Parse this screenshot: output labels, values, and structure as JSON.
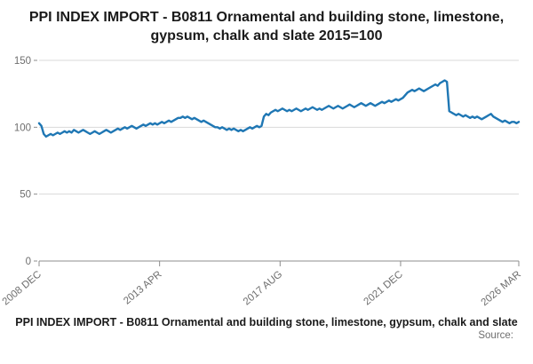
{
  "title": "PPI INDEX IMPORT - B0811 Ornamental and building stone, limestone, gypsum, chalk and slate 2015=100",
  "footer": {
    "caption": "PPI INDEX IMPORT - B0811 Ornamental and building stone, limestone, gypsum, chalk and slate",
    "source_label": "Source:"
  },
  "chart_data": {
    "type": "line",
    "title": "PPI INDEX IMPORT - B0811 Ornamental and building stone, limestone, gypsum, chalk and slate 2015=100",
    "xlabel": "",
    "ylabel": "",
    "ylim": [
      0,
      155
    ],
    "y_ticks": [
      0,
      50,
      100,
      150
    ],
    "x_tick_labels": [
      "2008 DEC",
      "2013 APR",
      "2017 AUG",
      "2021 DEC",
      "2026 MAR"
    ],
    "x_tick_months": [
      0,
      52,
      104,
      156,
      207
    ],
    "grid": true,
    "legend": false,
    "series": [
      {
        "name": "PPI INDEX IMPORT B0811",
        "color": "#1f77b4",
        "values": [
          103,
          101,
          95,
          93,
          94,
          95,
          94,
          95,
          96,
          95,
          96,
          97,
          96,
          97,
          96,
          98,
          97,
          96,
          97,
          98,
          97,
          96,
          95,
          96,
          97,
          96,
          95,
          96,
          97,
          98,
          97,
          96,
          97,
          98,
          99,
          98,
          99,
          100,
          99,
          100,
          101,
          100,
          99,
          100,
          101,
          102,
          101,
          102,
          103,
          102,
          103,
          102,
          103,
          104,
          103,
          104,
          105,
          104,
          105,
          106,
          107,
          107,
          108,
          107,
          108,
          107,
          106,
          107,
          106,
          105,
          104,
          105,
          104,
          103,
          102,
          101,
          100,
          100,
          99,
          100,
          99,
          98,
          99,
          98,
          99,
          98,
          97,
          98,
          97,
          98,
          99,
          100,
          99,
          100,
          101,
          100,
          101,
          108,
          110,
          109,
          111,
          112,
          113,
          112,
          113,
          114,
          113,
          112,
          113,
          112,
          113,
          114,
          113,
          112,
          113,
          114,
          113,
          114,
          115,
          114,
          113,
          114,
          113,
          114,
          115,
          116,
          115,
          114,
          115,
          116,
          115,
          114,
          115,
          116,
          117,
          116,
          115,
          116,
          117,
          118,
          117,
          116,
          117,
          118,
          117,
          116,
          117,
          118,
          119,
          118,
          119,
          120,
          119,
          120,
          121,
          120,
          121,
          122,
          124,
          126,
          127,
          128,
          127,
          128,
          129,
          128,
          127,
          128,
          129,
          130,
          131,
          132,
          131,
          133,
          134,
          135,
          134,
          112,
          111,
          110,
          109,
          110,
          109,
          108,
          109,
          108,
          107,
          108,
          107,
          108,
          107,
          106,
          107,
          108,
          109,
          110,
          108,
          107,
          106,
          105,
          104,
          105,
          104,
          103,
          104,
          104,
          103,
          104
        ]
      }
    ]
  }
}
